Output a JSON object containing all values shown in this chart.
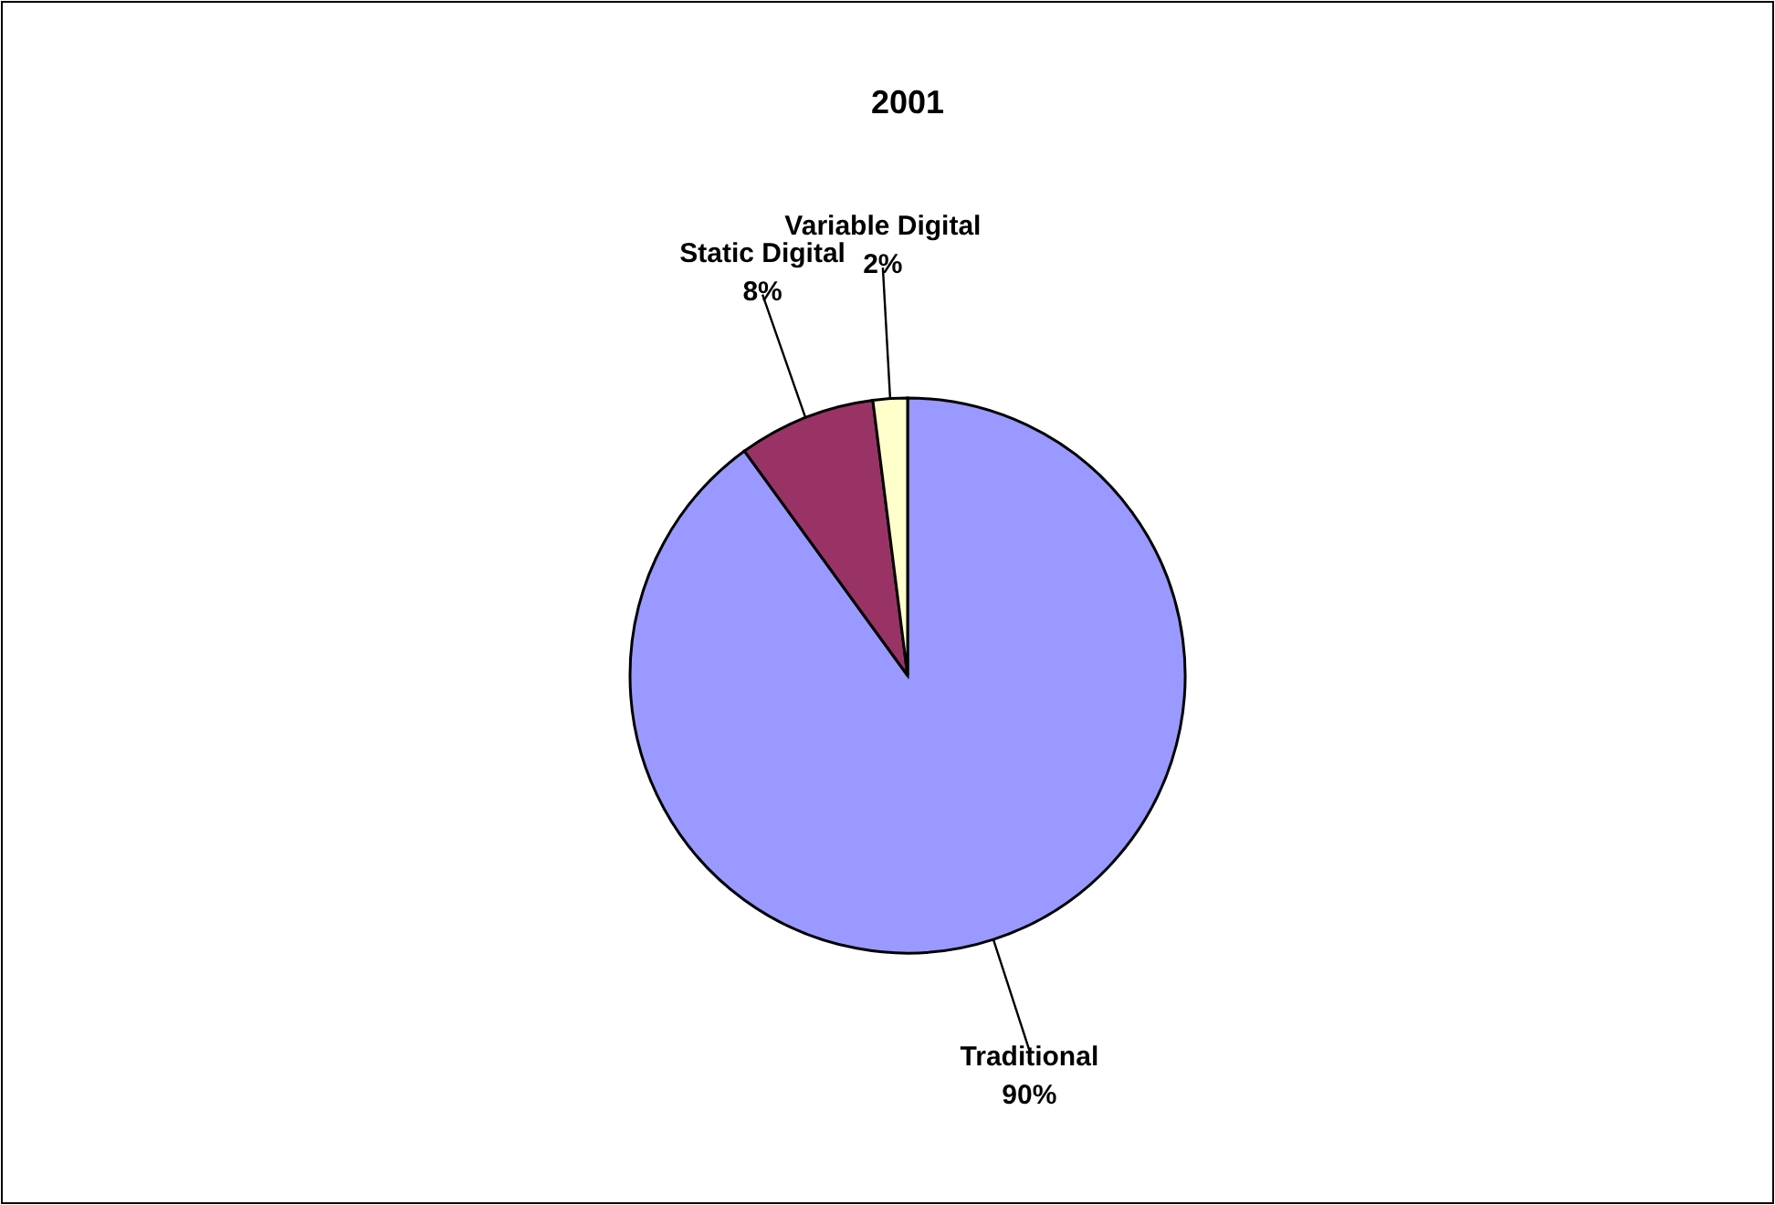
{
  "chart_data": {
    "type": "pie",
    "title": "2001",
    "categories": [
      "Traditional",
      "Static Digital",
      "Variable Digital"
    ],
    "values": [
      90,
      8,
      2
    ],
    "value_labels": [
      "90%",
      "8%",
      "2%"
    ],
    "colors": [
      "#9999ff",
      "#993366",
      "#ffffcc"
    ]
  }
}
